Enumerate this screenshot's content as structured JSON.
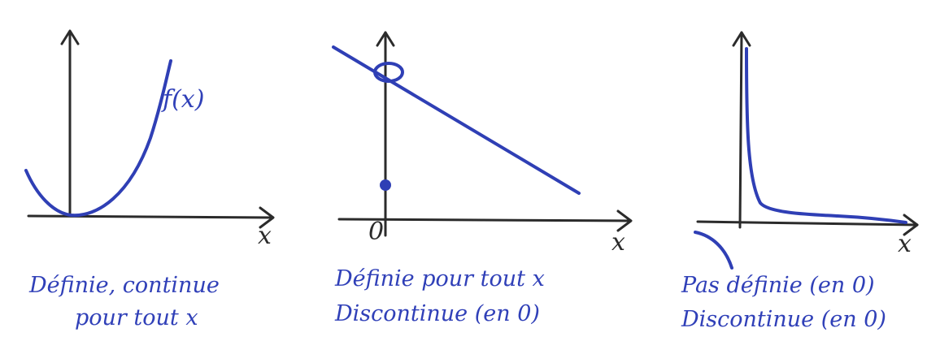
{
  "graphs": [
    {
      "function_label": "f(x)",
      "x_axis_label": "x",
      "caption_line1": "Définie, continue",
      "caption_line2": "pour tout x"
    },
    {
      "x_axis_label": "x",
      "origin_label": "0",
      "caption_line1": "Définie pour tout x",
      "caption_line2": "Discontinue (en 0)"
    },
    {
      "x_axis_label": "x",
      "caption_line1": "Pas définie (en 0)",
      "caption_line2": "Discontinue (en 0)"
    }
  ],
  "colors": {
    "ink": "#3040b8",
    "axes": "#2b2b2b"
  }
}
